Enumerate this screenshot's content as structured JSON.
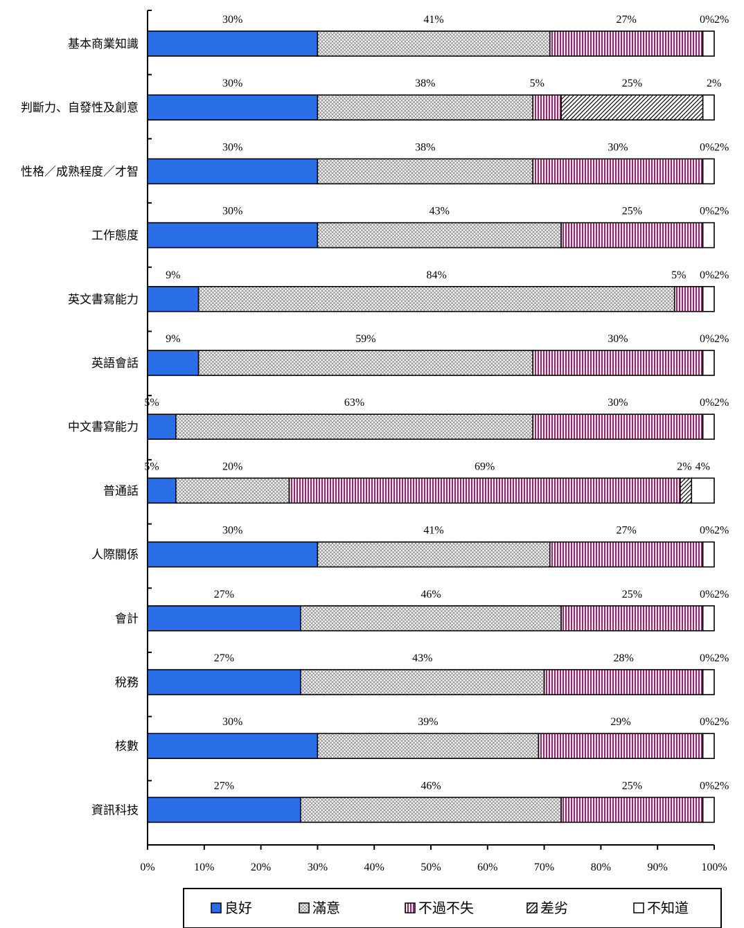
{
  "chart_data": {
    "type": "bar",
    "orientation": "horizontal",
    "stacked": true,
    "categories": [
      "基本商業知識",
      "判斷力、自發性及創意",
      "性格／成熟程度／才智",
      "工作態度",
      "英文書寫能力",
      "英語會話",
      "中文書寫能力",
      "普通話",
      "人際關係",
      "會計",
      "稅務",
      "核數",
      "資訊科技"
    ],
    "series": [
      {
        "name": "良好",
        "color": "#2b6fe8",
        "pattern": "solid",
        "values": [
          30,
          30,
          30,
          30,
          9,
          9,
          5,
          5,
          30,
          27,
          27,
          30,
          27
        ]
      },
      {
        "name": "滿意",
        "color": "#e6e6e6",
        "pattern": "crosshatch",
        "values": [
          41,
          38,
          38,
          43,
          84,
          59,
          63,
          20,
          41,
          46,
          43,
          39,
          46
        ]
      },
      {
        "name": "不過不失",
        "color": "#8b2d6a",
        "pattern": "vertical-lines",
        "values": [
          27,
          5,
          30,
          25,
          5,
          30,
          30,
          69,
          27,
          25,
          28,
          29,
          25
        ]
      },
      {
        "name": "差劣",
        "color": "#000000",
        "pattern": "diagonal",
        "values": [
          0,
          25,
          0,
          0,
          0,
          0,
          0,
          2,
          0,
          0,
          0,
          0,
          0
        ]
      },
      {
        "name": "不知道",
        "color": "#ffffff",
        "pattern": "empty",
        "values": [
          2,
          2,
          2,
          2,
          2,
          2,
          2,
          4,
          2,
          2,
          2,
          2,
          2
        ]
      }
    ],
    "x_ticks": [
      "0%",
      "10%",
      "20%",
      "30%",
      "40%",
      "50%",
      "60%",
      "70%",
      "80%",
      "90%",
      "100%"
    ],
    "xlim": [
      0,
      100
    ],
    "legend_position": "bottom",
    "grid": false,
    "value_suffix": "%"
  }
}
